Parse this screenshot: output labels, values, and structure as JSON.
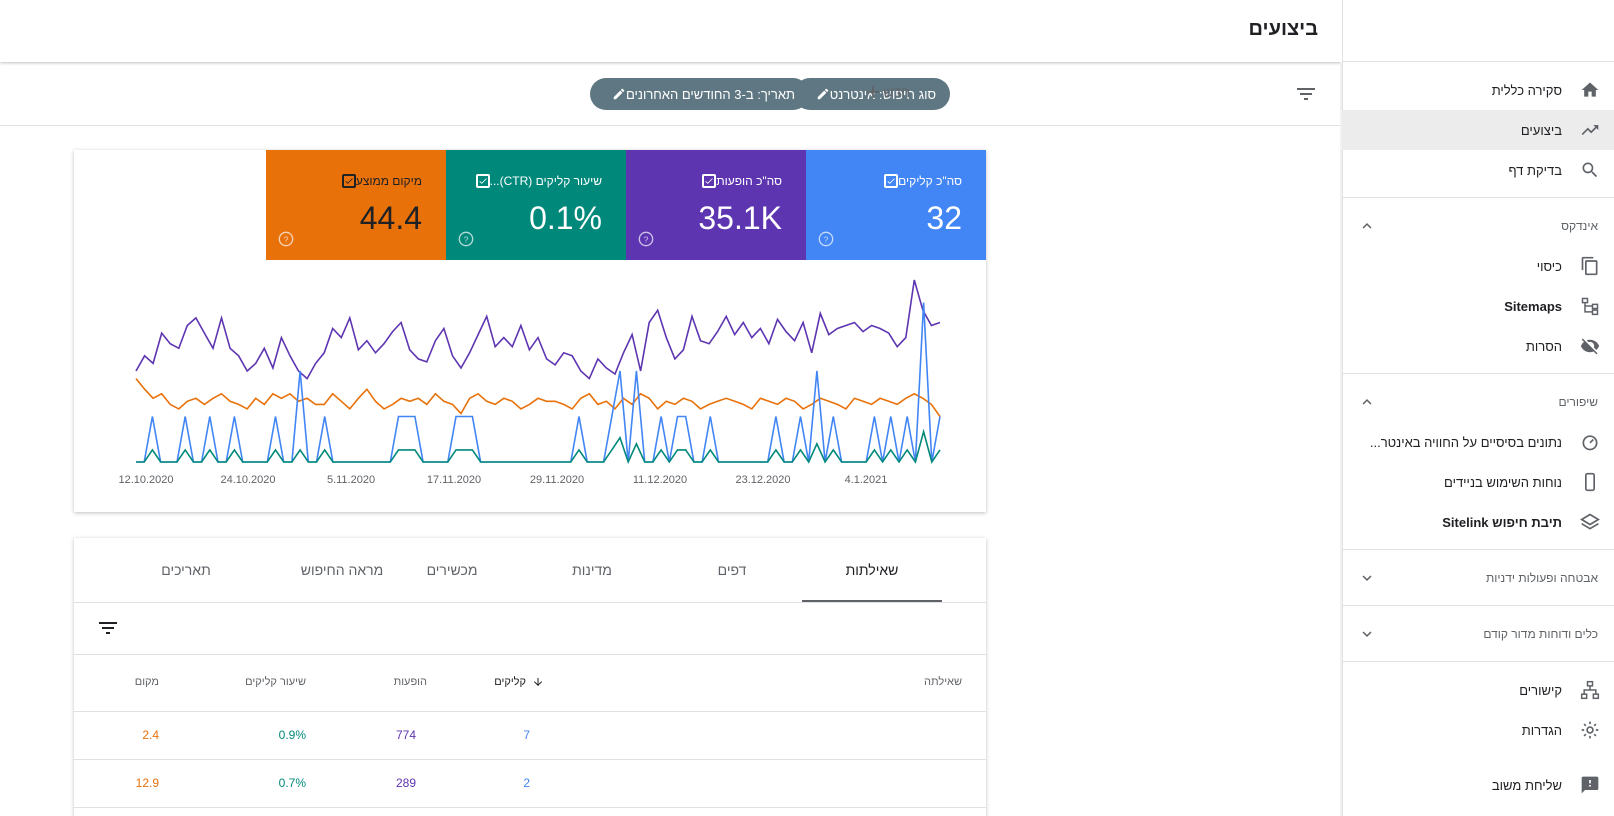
{
  "header": {
    "title": "ביצועים"
  },
  "filters": {
    "search_type_chip": "סוג חיפוש: אינטרנט",
    "date_chip": "תאריך: ב-3 החודשים האחרונים",
    "new_label": "חדש"
  },
  "sidebar": {
    "items": [
      {
        "label": "סקירה כללית",
        "icon": "home-icon"
      },
      {
        "label": "ביצועים",
        "icon": "trending-up-icon",
        "active": true
      },
      {
        "label": "בדיקת דף",
        "icon": "search-icon"
      }
    ],
    "index_section": {
      "title": "אינדקס",
      "expanded": true
    },
    "index_items": [
      {
        "label": "כיסוי",
        "icon": "copy-pages-icon"
      },
      {
        "label": "Sitemaps",
        "icon": "sitemap-icon"
      },
      {
        "label": "הסרות",
        "icon": "eye-off-icon"
      }
    ],
    "improvements_section": {
      "title": "שיפורים",
      "expanded": true
    },
    "improvements_items": [
      {
        "label": "נתונים בסיסיים על החוויה באינטר...",
        "icon": "speedometer-icon"
      },
      {
        "label": "נוחות השימוש בניידים",
        "icon": "mobile-icon"
      },
      {
        "label": "תיבת חיפוש Sitelink",
        "icon": "layers-icon"
      }
    ],
    "security_section": {
      "title": "אבטחה ופעולות ידניות",
      "expanded": false
    },
    "legacy_section": {
      "title": "כלים ודוחות מדור קודם",
      "expanded": false
    },
    "bottom_items": [
      {
        "label": "קישורים",
        "icon": "links-icon"
      },
      {
        "label": "הגדרות",
        "icon": "settings-icon"
      },
      {
        "label": "שליחת משוב",
        "icon": "feedback-icon"
      }
    ]
  },
  "metrics": [
    {
      "label": "סה\"כ קליקים",
      "value": "32",
      "color": "#4285f4",
      "checked": true
    },
    {
      "label": "סה\"כ הופעות",
      "value": "35.1K",
      "color": "#5e35b1",
      "checked": true
    },
    {
      "label": "שיעור קליקים (CTR)...",
      "value": "0.1%",
      "color": "#00897b",
      "checked": true
    },
    {
      "label": "מיקום ממוצע",
      "value": "44.4",
      "color": "#e8710a",
      "checked": true
    }
  ],
  "chart_data": {
    "type": "line",
    "x_ticks": [
      "12.10.2020",
      "24.10.2020",
      "5.11.2020",
      "17.11.2020",
      "29.11.2020",
      "11.12.2020",
      "23.12.2020",
      "4.1.2021"
    ],
    "series": [
      {
        "name": "סה\"כ הופעות",
        "color": "#5e35b1",
        "values": [
          0.6,
          0.7,
          0.65,
          0.85,
          0.78,
          0.75,
          0.9,
          0.95,
          0.85,
          0.75,
          0.95,
          0.75,
          0.7,
          0.6,
          0.65,
          0.75,
          0.62,
          0.82,
          0.7,
          0.6,
          0.55,
          0.65,
          0.72,
          0.88,
          0.82,
          0.95,
          0.74,
          0.8,
          0.72,
          0.78,
          0.86,
          0.92,
          0.74,
          0.68,
          0.66,
          0.8,
          0.88,
          0.7,
          0.62,
          0.72,
          0.84,
          0.96,
          0.76,
          0.82,
          0.76,
          0.9,
          0.74,
          0.82,
          0.68,
          0.64,
          0.72,
          0.7,
          0.6,
          0.55,
          0.68,
          0.62,
          0.58,
          0.72,
          0.84,
          0.6,
          0.92,
          1.0,
          0.82,
          0.68,
          0.74,
          0.96,
          0.8,
          0.78,
          0.86,
          0.96,
          0.84,
          0.92,
          0.82,
          0.88,
          0.78,
          0.94,
          0.86,
          0.8,
          0.92,
          0.72,
          0.98,
          0.84,
          0.88,
          0.9,
          0.92,
          0.86,
          0.9,
          0.88,
          0.85,
          0.76,
          0.82,
          1.2,
          1.0,
          0.9,
          0.92
        ]
      },
      {
        "name": "מיקום ממוצע",
        "color": "#e8710a",
        "values": [
          0.55,
          0.48,
          0.42,
          0.45,
          0.38,
          0.35,
          0.4,
          0.42,
          0.38,
          0.42,
          0.45,
          0.4,
          0.38,
          0.35,
          0.42,
          0.38,
          0.45,
          0.42,
          0.45,
          0.4,
          0.42,
          0.38,
          0.38,
          0.45,
          0.4,
          0.35,
          0.42,
          0.48,
          0.4,
          0.35,
          0.38,
          0.42,
          0.4,
          0.42,
          0.38,
          0.45,
          0.4,
          0.38,
          0.32,
          0.42,
          0.45,
          0.4,
          0.38,
          0.42,
          0.4,
          0.35,
          0.38,
          0.42,
          0.4,
          0.4,
          0.38,
          0.35,
          0.42,
          0.45,
          0.38,
          0.4,
          0.35,
          0.42,
          0.38,
          0.45,
          0.42,
          0.35,
          0.4,
          0.38,
          0.42,
          0.4,
          0.35,
          0.38,
          0.4,
          0.42,
          0.4,
          0.38,
          0.35,
          0.42,
          0.4,
          0.38,
          0.42,
          0.4,
          0.35,
          0.38,
          0.42,
          0.4,
          0.38,
          0.35,
          0.42,
          0.4,
          0.38,
          0.42,
          0.4,
          0.38,
          0.42,
          0.45,
          0.42,
          0.38,
          0.3
        ]
      },
      {
        "name": "סה\"כ קליקים",
        "color": "#4285f4",
        "values": [
          0,
          0,
          0.3,
          0,
          0,
          0,
          0.3,
          0,
          0,
          0.3,
          0,
          0,
          0.3,
          0,
          0,
          0,
          0,
          0.3,
          0,
          0,
          0.6,
          0,
          0,
          0.3,
          0,
          0,
          0,
          0,
          0,
          0,
          0,
          0,
          0.3,
          0.3,
          0.3,
          0,
          0,
          0,
          0,
          0.3,
          0.3,
          0.3,
          0,
          0,
          0,
          0,
          0,
          0,
          0,
          0,
          0,
          0,
          0,
          0,
          0.3,
          0,
          0,
          0,
          0.3,
          0.6,
          0,
          0.6,
          0,
          0,
          0.3,
          0,
          0.3,
          0.3,
          0,
          0,
          0.3,
          0,
          0,
          0,
          0,
          0,
          0,
          0,
          0.3,
          0,
          0,
          0.3,
          0,
          0.6,
          0,
          0.3,
          0,
          0,
          0,
          0,
          0.3,
          0,
          0.3,
          0,
          0.3,
          0,
          1.05,
          0,
          0.3
        ]
      },
      {
        "name": "שיעור קליקים (CTR)...",
        "color": "#00897b",
        "values": [
          0,
          0,
          0.08,
          0,
          0,
          0,
          0.08,
          0,
          0,
          0.08,
          0,
          0,
          0.08,
          0,
          0,
          0,
          0,
          0.08,
          0,
          0,
          0.08,
          0,
          0,
          0.08,
          0,
          0,
          0,
          0,
          0,
          0,
          0,
          0,
          0.08,
          0.08,
          0.08,
          0,
          0,
          0,
          0,
          0.08,
          0.08,
          0.08,
          0,
          0,
          0,
          0,
          0,
          0,
          0,
          0,
          0,
          0,
          0,
          0,
          0.08,
          0,
          0,
          0,
          0.08,
          0.16,
          0,
          0.12,
          0,
          0,
          0.08,
          0,
          0.08,
          0.08,
          0,
          0,
          0.08,
          0,
          0,
          0,
          0,
          0,
          0,
          0,
          0.08,
          0,
          0,
          0.08,
          0,
          0.12,
          0,
          0.08,
          0,
          0,
          0,
          0,
          0.08,
          0,
          0.08,
          0,
          0.08,
          0,
          0.2,
          0,
          0.08
        ]
      }
    ]
  },
  "tabs": [
    {
      "label": "שאילתות",
      "active": true
    },
    {
      "label": "דפים"
    },
    {
      "label": "מדינות"
    },
    {
      "label": "מכשירים"
    },
    {
      "label": "מראה החיפוש"
    },
    {
      "label": "תאריכים"
    }
  ],
  "table": {
    "headers": {
      "query": "שאילתה",
      "clicks": "קליקים",
      "impressions": "הופעות",
      "ctr": "שיעור קליקים",
      "position": "מקום"
    },
    "rows": [
      {
        "query": "",
        "clicks": "7",
        "impressions": "774",
        "ctr": "0.9%",
        "position": "2.4"
      },
      {
        "query": "",
        "clicks": "2",
        "impressions": "289",
        "ctr": "0.7%",
        "position": "12.9"
      }
    ]
  }
}
